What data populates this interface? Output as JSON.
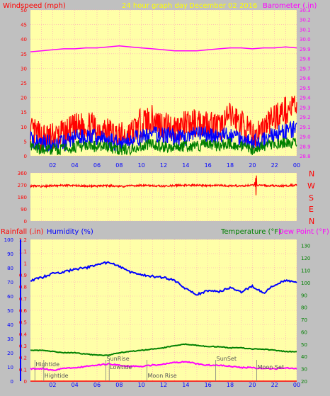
{
  "colors": {
    "panel_bg": "#c0c0c0",
    "plot_bg": "#ffffa8",
    "grid": "#ff9ebb",
    "wind": "#ff0000",
    "gust": "#0000ff",
    "avg": "#008000",
    "baro": "#ff00ff",
    "title": "#ffff00",
    "direction": "#ff0000",
    "humidity": "#0000ff",
    "temperature": "#008000",
    "dewpoint": "#ff00ff",
    "rain": "#ff0000",
    "tide": "#808080"
  },
  "header": {
    "wind_label": "Windspeed (mph)",
    "title": "24 hour graph day",
    "date": "December 02 2016",
    "baro_label": "Barometer (.in)"
  },
  "bottom_labels": {
    "rain": "Rainfall (.in)",
    "humidity": "Humidity (%)",
    "temperature": "Temperature (°F)",
    "dewpoint": "Dew Point (°F)"
  },
  "x_ticks": [
    "02",
    "04",
    "06",
    "08",
    "10",
    "12",
    "14",
    "16",
    "18",
    "20",
    "22",
    "00"
  ],
  "compass": [
    "N",
    "W",
    "S",
    "E",
    "N"
  ],
  "events": [
    {
      "label": "Hightide",
      "x": 0.4,
      "row": 1
    },
    {
      "label": "Hightide",
      "x": 1.2,
      "row": 3
    },
    {
      "label": "SunRise",
      "x": 6.8,
      "row": 0
    },
    {
      "label": "Lowtide",
      "x": 7.1,
      "row": 2
    },
    {
      "label": "Moon Rise",
      "x": 10.5,
      "row": 3
    },
    {
      "label": "SunSet",
      "x": 16.7,
      "row": 0
    },
    {
      "label": "Moon Set",
      "x": 20.4,
      "row": 2
    }
  ],
  "chart_data": [
    {
      "type": "line",
      "x": [
        0,
        1,
        2,
        3,
        4,
        5,
        6,
        7,
        8,
        9,
        10,
        11,
        12,
        13,
        14,
        15,
        16,
        17,
        18,
        19,
        20,
        21,
        22,
        23,
        24
      ],
      "xticks": [
        "02",
        "04",
        "06",
        "08",
        "10",
        "12",
        "14",
        "16",
        "18",
        "20",
        "22",
        "00"
      ],
      "xlim": [
        0,
        24
      ],
      "ylim": [
        0,
        50
      ],
      "yticks": [
        0,
        5,
        10,
        15,
        20,
        25,
        30,
        35,
        40,
        45,
        50
      ],
      "y2lim": [
        28.8,
        30.3
      ],
      "y2ticks": [
        28.8,
        28.9,
        29.0,
        29.1,
        29.2,
        29.3,
        29.4,
        29.5,
        29.6,
        29.7,
        29.8,
        29.9,
        30.0,
        30.1,
        30.2,
        30.3
      ],
      "ylabel": "Windspeed (mph)",
      "y2label": "Barometer (.in)",
      "grid": true,
      "series": [
        {
          "axis": "y",
          "values": [
            8,
            6,
            6,
            7,
            9,
            10,
            9,
            8,
            6,
            7,
            11,
            12,
            10,
            9,
            10,
            11,
            11,
            9,
            13,
            11,
            6,
            9,
            13,
            15,
            17
          ]
        },
        {
          "axis": "y",
          "values": [
            5,
            4,
            4,
            4,
            6,
            6,
            6,
            5,
            4,
            5,
            6,
            7,
            7,
            6,
            6,
            7,
            7,
            6,
            7,
            6,
            4,
            5,
            7,
            8,
            9
          ]
        },
        {
          "axis": "y",
          "values": [
            3,
            2,
            2,
            2,
            3,
            3,
            3,
            3,
            2,
            2,
            3,
            4,
            3,
            3,
            3,
            3,
            4,
            3,
            4,
            3,
            2,
            3,
            4,
            4,
            5
          ]
        },
        {
          "axis": "y2",
          "values": [
            29.87,
            29.88,
            29.89,
            29.9,
            29.9,
            29.91,
            29.91,
            29.92,
            29.93,
            29.92,
            29.91,
            29.9,
            29.89,
            29.88,
            29.88,
            29.88,
            29.89,
            29.9,
            29.91,
            29.91,
            29.9,
            29.91,
            29.91,
            29.92,
            29.91
          ]
        }
      ]
    },
    {
      "type": "line",
      "x": [
        0,
        1,
        2,
        3,
        4,
        5,
        6,
        7,
        8,
        9,
        10,
        11,
        12,
        13,
        14,
        15,
        16,
        17,
        18,
        19,
        20,
        21,
        22,
        23,
        24
      ],
      "xlim": [
        0,
        24
      ],
      "ylim": [
        0,
        360
      ],
      "yticks": [
        0,
        90,
        180,
        270,
        360
      ],
      "grid": true,
      "series": [
        {
          "values": [
            262,
            260,
            263,
            266,
            264,
            261,
            262,
            265,
            259,
            263,
            266,
            264,
            262,
            265,
            268,
            267,
            265,
            266,
            262,
            263,
            268,
            265,
            264,
            263,
            268
          ]
        }
      ]
    },
    {
      "type": "line",
      "x": [
        0,
        1,
        2,
        3,
        4,
        5,
        6,
        7,
        8,
        9,
        10,
        11,
        12,
        13,
        14,
        15,
        16,
        17,
        18,
        19,
        20,
        21,
        22,
        23,
        24
      ],
      "xlim": [
        0,
        24
      ],
      "ylim": [
        0,
        100
      ],
      "yticks": [
        0,
        10,
        20,
        30,
        40,
        50,
        60,
        70,
        80,
        90,
        100
      ],
      "rain_lim": [
        0,
        1.2
      ],
      "rain_ticks": [
        0,
        0.1,
        0.2,
        0.3,
        0.4,
        0.5,
        0.6,
        0.7,
        0.8,
        0.9,
        1,
        1.1,
        1.2
      ],
      "temp_lim": [
        20,
        135
      ],
      "temp_ticks": [
        20,
        30,
        40,
        50,
        60,
        70,
        80,
        90,
        100,
        110,
        120,
        130
      ],
      "grid": true,
      "series": [
        {
          "axis": "humidity",
          "values": [
            71,
            73,
            76,
            77,
            79,
            80,
            82,
            84,
            81,
            77,
            75,
            74,
            73,
            71,
            65,
            61,
            64,
            63,
            66,
            63,
            67,
            62,
            68,
            71,
            70
          ]
        },
        {
          "axis": "temperature",
          "values": [
            45,
            45,
            44,
            43,
            43,
            42,
            41,
            41,
            43,
            44,
            45,
            46,
            47,
            49,
            50,
            49,
            48,
            48,
            47,
            47,
            46,
            46,
            45,
            44,
            44
          ]
        },
        {
          "axis": "temperature",
          "values": [
            30,
            30,
            29,
            30,
            31,
            32,
            33,
            34,
            33,
            32,
            32,
            33,
            34,
            35,
            36,
            34,
            33,
            33,
            32,
            31,
            31,
            30,
            30,
            31,
            30
          ]
        },
        {
          "axis": "rain",
          "values": [
            0,
            0,
            0,
            0,
            0,
            0,
            0,
            0,
            0,
            0,
            0,
            0,
            0,
            0,
            0,
            0,
            0,
            0,
            0,
            0,
            0,
            0,
            0,
            0,
            0
          ]
        }
      ]
    }
  ]
}
